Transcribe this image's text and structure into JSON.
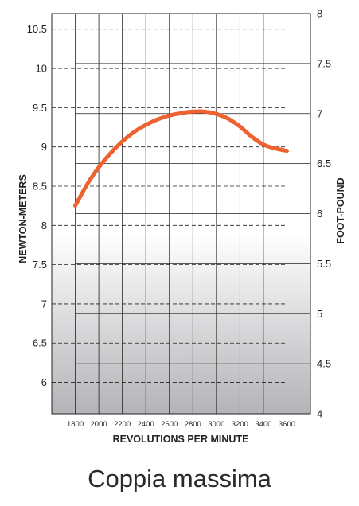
{
  "caption": "Coppia massima",
  "chart_data": {
    "type": "line",
    "title": "",
    "xlabel": "REVOLUTIONS PER MINUTE",
    "ylabel": "NEWTON-METERS",
    "y2label": "FOOT-POUND",
    "x": [
      1800,
      2000,
      2200,
      2400,
      2600,
      2800,
      3000,
      3200,
      3400,
      3600
    ],
    "x_ticks": [
      "1800",
      "2000",
      "2200",
      "2400",
      "2600",
      "2800",
      "3000",
      "3200",
      "3400",
      "3600"
    ],
    "xlim": [
      1600,
      3800
    ],
    "ylim": [
      5.6,
      10.7
    ],
    "y_ticks": [
      "6",
      "6.5",
      "7",
      "7.5",
      "8",
      "8.5",
      "9",
      "9.5",
      "10",
      "10.5"
    ],
    "y2lim": [
      4,
      8
    ],
    "y2_ticks": [
      "4",
      "4.5",
      "5",
      "5.5",
      "6",
      "6.5",
      "7",
      "7.5",
      "8"
    ],
    "grid": true,
    "series": [
      {
        "color": "#ee6231",
        "x": [
          1800,
          1900,
          2000,
          2100,
          2200,
          2300,
          2400,
          2500,
          2600,
          2700,
          2800,
          2900,
          3000,
          3100,
          3200,
          3300,
          3400,
          3500,
          3600
        ],
        "y": [
          8.25,
          8.52,
          8.74,
          8.92,
          9.07,
          9.19,
          9.28,
          9.35,
          9.4,
          9.43,
          9.45,
          9.45,
          9.42,
          9.36,
          9.26,
          9.13,
          9.03,
          8.98,
          8.95
        ]
      }
    ]
  }
}
